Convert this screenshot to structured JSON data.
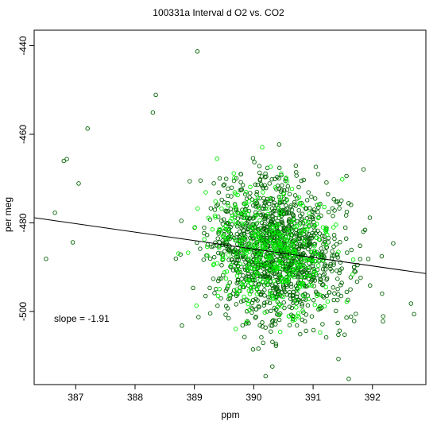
{
  "chart_data": {
    "type": "scatter",
    "title": "100331a   Interval d O2 vs. CO2",
    "xlabel": "ppm",
    "ylabel": "per meg",
    "xlim": [
      386.3,
      392.9
    ],
    "ylim": [
      -516.5,
      -436.5
    ],
    "x_ticks": [
      {
        "value": 387,
        "label": "387"
      },
      {
        "value": 388,
        "label": "388"
      },
      {
        "value": 389,
        "label": "389"
      },
      {
        "value": 390,
        "label": "390"
      },
      {
        "value": 391,
        "label": "391"
      },
      {
        "value": 392,
        "label": "392"
      }
    ],
    "y_ticks": [
      {
        "value": -440,
        "label": "-440"
      },
      {
        "value": -460,
        "label": "-460"
      },
      {
        "value": -480,
        "label": "-480"
      },
      {
        "value": -500,
        "label": "-500"
      }
    ],
    "grid": false,
    "legend": "none",
    "regression": {
      "slope": -1.91,
      "intercept": 259.0
    },
    "annotation": "slope =  -1.91",
    "series": [
      {
        "color": "#006400",
        "count": 1300,
        "x_center": 390.4,
        "x_spread": 0.95,
        "y_noise": 8.0,
        "seed": 7
      },
      {
        "color": "#00ee00",
        "count": 420,
        "x_center": 390.3,
        "x_spread": 0.9,
        "y_noise": 7.0,
        "seed": 13
      }
    ],
    "outliers": [
      {
        "x": 386.5,
        "y": -488.1
      },
      {
        "x": 386.65,
        "y": -477.7
      },
      {
        "x": 386.8,
        "y": -466.0
      },
      {
        "x": 386.85,
        "y": -465.6
      },
      {
        "x": 386.95,
        "y": -484.4
      },
      {
        "x": 387.05,
        "y": -471.1
      },
      {
        "x": 387.2,
        "y": -458.7
      },
      {
        "x": 388.35,
        "y": -451.1
      },
      {
        "x": 388.3,
        "y": -455.1
      },
      {
        "x": 389.05,
        "y": -441.3
      },
      {
        "x": 390.2,
        "y": -514.6
      },
      {
        "x": 391.6,
        "y": -515.2
      },
      {
        "x": 391.85,
        "y": -467.9
      },
      {
        "x": 392.35,
        "y": -484.6
      },
      {
        "x": 392.65,
        "y": -498.2
      },
      {
        "x": 392.7,
        "y": -500.6
      }
    ]
  }
}
